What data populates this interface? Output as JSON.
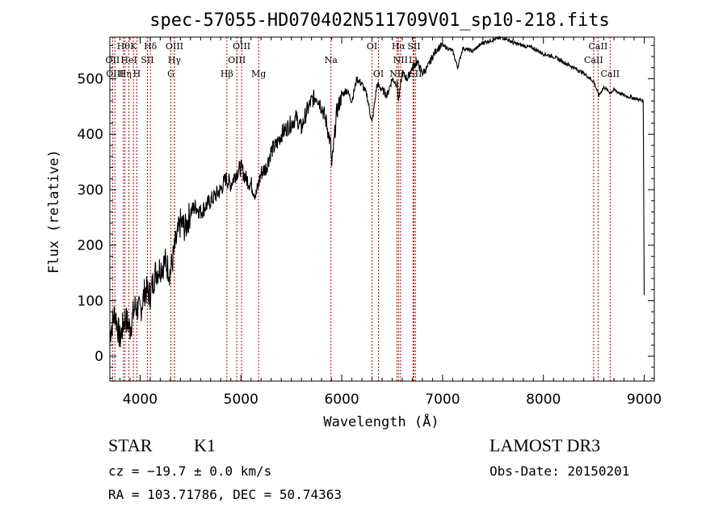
{
  "chart_data": {
    "type": "line",
    "title": "spec-57055-HD070402N511709V01_sp10-218.fits",
    "xlabel": "Wavelength (Å)",
    "ylabel": "Flux (relative)",
    "xlim": [
      3700,
      9100
    ],
    "ylim": [
      -45,
      575
    ],
    "xticks": [
      4000,
      5000,
      6000,
      7000,
      8000,
      9000
    ],
    "yticks": [
      0,
      100,
      200,
      300,
      400,
      500
    ],
    "series": [
      {
        "name": "spectrum",
        "x": [
          3700,
          3750,
          3800,
          3850,
          3900,
          3950,
          4000,
          4050,
          4100,
          4150,
          4200,
          4250,
          4300,
          4350,
          4400,
          4450,
          4500,
          4550,
          4600,
          4650,
          4700,
          4750,
          4800,
          4850,
          4900,
          4950,
          5000,
          5050,
          5100,
          5150,
          5200,
          5250,
          5300,
          5350,
          5400,
          5450,
          5500,
          5550,
          5600,
          5650,
          5700,
          5750,
          5800,
          5850,
          5890,
          5900,
          5950,
          6000,
          6050,
          6100,
          6150,
          6200,
          6250,
          6300,
          6350,
          6400,
          6450,
          6500,
          6550,
          6563,
          6600,
          6650,
          6700,
          6750,
          6800,
          6850,
          6900,
          6950,
          7000,
          7100,
          7150,
          7200,
          7300,
          7400,
          7500,
          7600,
          7700,
          7800,
          7900,
          8000,
          8100,
          8200,
          8300,
          8400,
          8500,
          8550,
          8600,
          8660,
          8700,
          8800,
          8900,
          8990,
          9000
        ],
        "y": [
          40,
          80,
          30,
          70,
          50,
          90,
          80,
          120,
          110,
          150,
          160,
          170,
          150,
          200,
          240,
          230,
          260,
          270,
          260,
          270,
          280,
          290,
          300,
          320,
          310,
          330,
          340,
          320,
          310,
          290,
          330,
          340,
          370,
          380,
          400,
          410,
          420,
          430,
          410,
          440,
          460,
          470,
          450,
          420,
          380,
          340,
          440,
          470,
          480,
          460,
          500,
          490,
          470,
          420,
          490,
          480,
          470,
          500,
          490,
          460,
          510,
          500,
          520,
          530,
          510,
          520,
          540,
          555,
          560,
          550,
          520,
          555,
          550,
          565,
          570,
          575,
          565,
          560,
          555,
          545,
          540,
          530,
          520,
          510,
          495,
          470,
          485,
          475,
          480,
          470,
          465,
          460,
          110
        ],
        "color": "#000000"
      }
    ],
    "spectral_lines": [
      {
        "wavelength": 3835,
        "label": "Hθ",
        "row": 1
      },
      {
        "wavelength": 3934,
        "label": "K",
        "row": 1
      },
      {
        "wavelength": 4102,
        "label": "Hδ",
        "row": 1
      },
      {
        "wavelength": 4341,
        "label": "OIII",
        "row": 1
      },
      {
        "wavelength": 5007,
        "label": "OIII",
        "row": 1
      },
      {
        "wavelength": 6300,
        "label": "OI",
        "row": 1
      },
      {
        "wavelength": 6563,
        "label": "Hα",
        "row": 1
      },
      {
        "wavelength": 6716,
        "label": "SII",
        "row": 1
      },
      {
        "wavelength": 8542,
        "label": "CaII",
        "row": 1
      },
      {
        "wavelength": 3727,
        "label": "OII",
        "row": 2
      },
      {
        "wavelength": 3889,
        "label": "HeI",
        "row": 2
      },
      {
        "wavelength": 4072,
        "label": "SII",
        "row": 2
      },
      {
        "wavelength": 4340,
        "label": "Hγ",
        "row": 2
      },
      {
        "wavelength": 4959,
        "label": "OIII",
        "row": 2
      },
      {
        "wavelength": 5893,
        "label": "Na",
        "row": 2
      },
      {
        "wavelength": 6583,
        "label": "NII",
        "row": 2
      },
      {
        "wavelength": 6708,
        "label": "Li",
        "row": 2
      },
      {
        "wavelength": 8498,
        "label": "CaII",
        "row": 2
      },
      {
        "wavelength": 3750,
        "label": "OIII",
        "row": 3
      },
      {
        "wavelength": 3850,
        "label": "Hη",
        "row": 3
      },
      {
        "wavelength": 3968,
        "label": "H",
        "row": 3
      },
      {
        "wavelength": 4305,
        "label": "G",
        "row": 3
      },
      {
        "wavelength": 4861,
        "label": "Hβ",
        "row": 3
      },
      {
        "wavelength": 5175,
        "label": "Mg",
        "row": 3
      },
      {
        "wavelength": 6364,
        "label": "OI",
        "row": 3
      },
      {
        "wavelength": 6548,
        "label": "NII",
        "row": 3
      },
      {
        "wavelength": 6731,
        "label": "SII",
        "row": 3
      },
      {
        "wavelength": 8662,
        "label": "CaII",
        "row": 3
      }
    ]
  },
  "footer": {
    "object_class": "STAR",
    "subclass": "K1",
    "survey": "LAMOST DR3",
    "redshift": "cz = −19.7 ± 0.0 km/s",
    "obs_date": "Obs-Date: 20150201",
    "coords": "RA = 103.71786, DEC =  50.74363"
  }
}
